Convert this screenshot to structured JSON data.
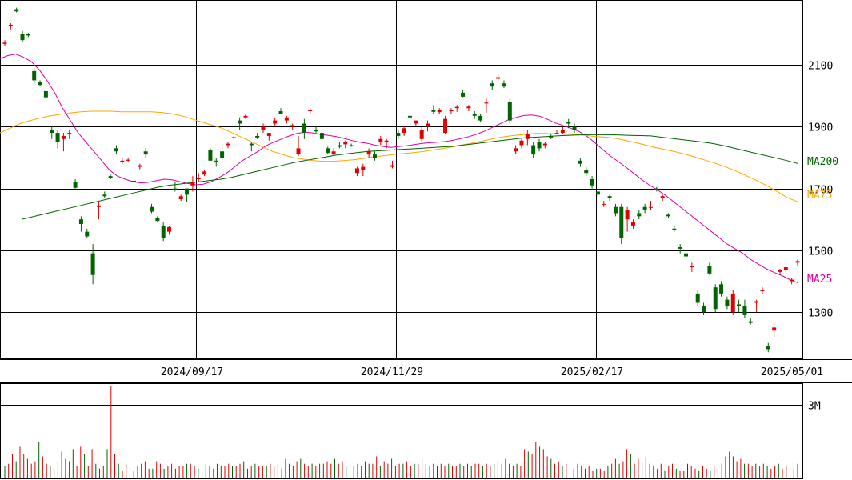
{
  "chart_data": {
    "type": "candlestick",
    "x_labels": [
      "2024/09/17",
      "2024/11/29",
      "2025/02/17",
      "2025/05/01"
    ],
    "y_ticks": [
      1300,
      1500,
      1700,
      1900,
      2100
    ],
    "y_range": [
      1150,
      2310
    ],
    "volume_tick": "3M",
    "volume_max": 3.9,
    "legend": [
      {
        "label": "MA200",
        "color": "#006400",
        "value": 1781
      },
      {
        "label": "MA75",
        "color": "#ffa500",
        "value": 1657
      },
      {
        "label": "MA25",
        "color": "#e000a0",
        "value": 1395
      }
    ],
    "candles": [
      [
        2168,
        2180,
        2160,
        2172
      ],
      [
        2225,
        2235,
        2215,
        2230
      ],
      [
        2280,
        2285,
        2270,
        2273
      ],
      [
        2200,
        2210,
        2175,
        2180
      ],
      [
        2199,
        2203,
        2190,
        2195
      ],
      [
        2080,
        2090,
        2040,
        2050
      ],
      [
        2045,
        2050,
        2030,
        2035
      ],
      [
        2015,
        2020,
        1990,
        1995
      ],
      [
        1890,
        1900,
        1860,
        1880
      ],
      [
        1880,
        1890,
        1830,
        1850
      ],
      [
        1860,
        1880,
        1820,
        1870
      ],
      [
        1880,
        1890,
        1860,
        1880
      ],
      [
        1720,
        1730,
        1700,
        1702
      ],
      [
        1600,
        1610,
        1560,
        1585
      ],
      [
        1560,
        1570,
        1540,
        1545
      ],
      [
        1490,
        1520,
        1390,
        1420
      ],
      [
        1640,
        1660,
        1600,
        1645
      ],
      [
        1680,
        1690,
        1670,
        1675
      ],
      [
        1740,
        1745,
        1730,
        1735
      ],
      [
        1830,
        1840,
        1810,
        1820
      ],
      [
        1785,
        1800,
        1780,
        1790
      ],
      [
        1790,
        1800,
        1785,
        1793
      ],
      [
        1725,
        1730,
        1715,
        1720
      ],
      [
        1770,
        1780,
        1762,
        1775
      ],
      [
        1820,
        1830,
        1800,
        1810
      ],
      [
        1640,
        1650,
        1620,
        1625
      ],
      [
        1605,
        1610,
        1590,
        1595
      ],
      [
        1580,
        1590,
        1530,
        1540
      ],
      [
        1560,
        1580,
        1550,
        1575
      ],
      [
        1700,
        1720,
        1690,
        1695
      ],
      [
        1665,
        1680,
        1660,
        1675
      ],
      [
        1700,
        1700,
        1655,
        1680
      ],
      [
        1710,
        1740,
        1690,
        1720
      ],
      [
        1730,
        1750,
        1720,
        1735
      ],
      [
        1745,
        1760,
        1740,
        1755
      ],
      [
        1825,
        1830,
        1790,
        1790
      ],
      [
        1790,
        1800,
        1770,
        1787
      ],
      [
        1820,
        1840,
        1790,
        1800
      ],
      [
        1840,
        1850,
        1830,
        1845
      ],
      [
        1865,
        1870,
        1860,
        1866
      ],
      [
        1920,
        1930,
        1890,
        1910
      ],
      [
        1930,
        1940,
        1925,
        1935
      ],
      [
        1845,
        1850,
        1820,
        1840
      ],
      [
        1870,
        1880,
        1860,
        1865
      ],
      [
        1890,
        1910,
        1880,
        1900
      ],
      [
        1870,
        1880,
        1855,
        1880
      ],
      [
        1910,
        1930,
        1900,
        1920
      ],
      [
        1950,
        1960,
        1940,
        1942
      ],
      [
        1920,
        1935,
        1910,
        1930
      ],
      [
        1900,
        1910,
        1890,
        1905
      ],
      [
        1810,
        1870,
        1805,
        1830
      ],
      [
        1910,
        1925,
        1860,
        1880
      ],
      [
        1950,
        1960,
        1940,
        1955
      ],
      [
        1890,
        1900,
        1880,
        1885
      ],
      [
        1880,
        1890,
        1855,
        1860
      ],
      [
        1830,
        1835,
        1810,
        1815
      ],
      [
        1810,
        1830,
        1805,
        1820
      ],
      [
        1840,
        1850,
        1830,
        1835
      ],
      [
        1843,
        1855,
        1830,
        1852
      ],
      [
        1840,
        1845,
        1835,
        1838
      ],
      [
        1750,
        1770,
        1740,
        1765
      ],
      [
        1760,
        1780,
        1740,
        1770
      ],
      [
        1810,
        1830,
        1800,
        1820
      ],
      [
        1810,
        1820,
        1790,
        1800
      ],
      [
        1850,
        1870,
        1840,
        1860
      ],
      [
        1850,
        1860,
        1830,
        1855
      ],
      [
        1770,
        1790,
        1765,
        1775
      ],
      [
        1880,
        1890,
        1860,
        1870
      ],
      [
        1880,
        1900,
        1870,
        1895
      ],
      [
        1935,
        1945,
        1925,
        1930
      ],
      [
        1910,
        1920,
        1900,
        1920
      ],
      [
        1860,
        1900,
        1850,
        1890
      ],
      [
        1900,
        1920,
        1885,
        1910
      ],
      [
        1955,
        1970,
        1940,
        1948
      ],
      [
        1947,
        1960,
        1940,
        1955
      ],
      [
        1880,
        1935,
        1875,
        1925
      ],
      [
        1950,
        1960,
        1940,
        1955
      ],
      [
        1960,
        1970,
        1948,
        1964
      ],
      [
        2010,
        2020,
        1995,
        1997
      ],
      [
        1960,
        1970,
        1950,
        1965
      ],
      [
        1940,
        1950,
        1925,
        1935
      ],
      [
        1935,
        1940,
        1915,
        1920
      ],
      [
        1975,
        1990,
        1945,
        1978
      ],
      [
        2040,
        2050,
        2020,
        2030
      ],
      [
        2055,
        2070,
        2050,
        2060
      ],
      [
        2040,
        2050,
        2025,
        2030
      ],
      [
        1980,
        1990,
        1910,
        1920
      ],
      [
        1820,
        1840,
        1810,
        1830
      ],
      [
        1840,
        1860,
        1830,
        1855
      ],
      [
        1860,
        1890,
        1840,
        1875
      ],
      [
        1840,
        1850,
        1800,
        1810
      ],
      [
        1850,
        1860,
        1820,
        1830
      ],
      [
        1840,
        1850,
        1830,
        1845
      ],
      [
        1870,
        1875,
        1860,
        1865
      ],
      [
        1880,
        1890,
        1875,
        1880
      ],
      [
        1880,
        1900,
        1875,
        1890
      ],
      [
        1915,
        1925,
        1895,
        1910
      ],
      [
        1900,
        1910,
        1880,
        1890
      ],
      [
        1790,
        1800,
        1770,
        1780
      ],
      [
        1760,
        1770,
        1740,
        1750
      ],
      [
        1730,
        1740,
        1700,
        1710
      ],
      [
        1690,
        1700,
        1670,
        1680
      ],
      [
        1650,
        1660,
        1640,
        1650
      ],
      [
        1675,
        1680,
        1660,
        1670
      ],
      [
        1640,
        1650,
        1610,
        1620
      ],
      [
        1640,
        1650,
        1520,
        1540
      ],
      [
        1600,
        1640,
        1560,
        1630
      ],
      [
        1580,
        1600,
        1570,
        1590
      ],
      [
        1620,
        1630,
        1600,
        1610
      ],
      [
        1640,
        1650,
        1620,
        1630
      ],
      [
        1640,
        1660,
        1630,
        1640
      ],
      [
        1700,
        1705,
        1690,
        1695
      ],
      [
        1670,
        1680,
        1660,
        1675
      ],
      [
        1615,
        1620,
        1605,
        1610
      ],
      [
        1570,
        1580,
        1560,
        1565
      ],
      [
        1510,
        1520,
        1490,
        1505
      ],
      [
        1490,
        1500,
        1470,
        1480
      ],
      [
        1445,
        1460,
        1430,
        1450
      ],
      [
        1360,
        1370,
        1320,
        1330
      ],
      [
        1320,
        1330,
        1290,
        1300
      ],
      [
        1450,
        1460,
        1420,
        1425
      ],
      [
        1380,
        1390,
        1300,
        1310
      ],
      [
        1390,
        1400,
        1350,
        1360
      ],
      [
        1340,
        1350,
        1310,
        1320
      ],
      [
        1300,
        1370,
        1290,
        1360
      ],
      [
        1325,
        1340,
        1300,
        1320
      ],
      [
        1320,
        1340,
        1280,
        1290
      ],
      [
        1270,
        1280,
        1260,
        1265
      ],
      [
        1330,
        1340,
        1300,
        1335
      ],
      [
        1370,
        1380,
        1360,
        1370
      ],
      [
        1190,
        1200,
        1170,
        1180
      ],
      [
        1240,
        1260,
        1220,
        1250
      ],
      [
        1430,
        1440,
        1420,
        1435
      ],
      [
        1435,
        1450,
        1430,
        1445
      ],
      [
        1400,
        1410,
        1390,
        1405
      ],
      [
        1460,
        1470,
        1450,
        1465
      ]
    ],
    "ma25": [
      2120,
      2130,
      2135,
      2125,
      2110,
      2085,
      2050,
      2010,
      1960,
      1920,
      1880,
      1850,
      1820,
      1790,
      1760,
      1740,
      1730,
      1722,
      1718,
      1720,
      1725,
      1730,
      1728,
      1722,
      1716,
      1712,
      1714,
      1722,
      1735,
      1750,
      1770,
      1790,
      1805,
      1820,
      1838,
      1850,
      1860,
      1870,
      1878,
      1882,
      1880,
      1875,
      1872,
      1868,
      1862,
      1855,
      1850,
      1846,
      1840,
      1836,
      1833,
      1836,
      1838,
      1842,
      1846,
      1848,
      1850,
      1852,
      1856,
      1862,
      1868,
      1876,
      1886,
      1898,
      1910,
      1922,
      1930,
      1936,
      1938,
      1934,
      1924,
      1912,
      1904,
      1895,
      1885,
      1870,
      1850,
      1828,
      1806,
      1788,
      1770,
      1750,
      1730,
      1712,
      1696,
      1680,
      1660,
      1640,
      1620,
      1600,
      1580,
      1560,
      1540,
      1520,
      1505,
      1490,
      1470,
      1455,
      1440,
      1428,
      1418,
      1405,
      1395
    ],
    "ma75": [
      1880,
      1895,
      1910,
      1920,
      1928,
      1935,
      1940,
      1945,
      1948,
      1950,
      1950,
      1950,
      1948,
      1948,
      1948,
      1948,
      1946,
      1942,
      1935,
      1925,
      1915,
      1905,
      1895,
      1880,
      1865,
      1850,
      1835,
      1820,
      1810,
      1800,
      1795,
      1790,
      1788,
      1788,
      1790,
      1793,
      1797,
      1802,
      1806,
      1810,
      1813,
      1816,
      1820,
      1825,
      1830,
      1836,
      1842,
      1848,
      1855,
      1862,
      1868,
      1872,
      1875,
      1878,
      1878,
      1877,
      1876,
      1875,
      1872,
      1868,
      1866,
      1862,
      1855,
      1848,
      1840,
      1832,
      1825,
      1818,
      1810,
      1800,
      1790,
      1780,
      1768,
      1755,
      1740,
      1725,
      1708,
      1690,
      1670,
      1657
    ],
    "ma200": [
      1600,
      1608,
      1616,
      1624,
      1632,
      1640,
      1648,
      1656,
      1664,
      1672,
      1680,
      1688,
      1696,
      1704,
      1710,
      1714,
      1718,
      1722,
      1726,
      1730,
      1736,
      1744,
      1752,
      1760,
      1768,
      1776,
      1784,
      1790,
      1796,
      1802,
      1808,
      1812,
      1816,
      1820,
      1822,
      1824,
      1826,
      1828,
      1830,
      1832,
      1834,
      1836,
      1840,
      1844,
      1848,
      1852,
      1856,
      1860,
      1864,
      1866,
      1868,
      1870,
      1872,
      1873,
      1874,
      1874,
      1874,
      1873,
      1872,
      1871,
      1870,
      1866,
      1862,
      1858,
      1854,
      1850,
      1845,
      1838,
      1830,
      1822,
      1814,
      1806,
      1798,
      1790,
      1781
    ],
    "volumes": [
      0.5,
      0.6,
      1.0,
      0.7,
      1.3,
      1.0,
      0.8,
      0.6,
      0.7,
      1.5,
      0.9,
      0.6,
      0.5,
      0.4,
      0.7,
      1.1,
      0.8,
      0.7,
      1.2,
      0.5,
      1.3,
      1.0,
      0.5,
      1.2,
      0.6,
      0.4,
      0.5,
      1.2,
      3.8,
      1.0,
      0.6,
      0.3,
      0.6,
      0.4,
      0.3,
      0.5,
      0.6,
      0.7,
      0.4,
      0.4,
      0.7,
      0.6,
      0.4,
      0.5,
      0.6,
      0.4,
      0.5,
      0.5,
      0.6,
      0.6,
      0.5,
      0.4,
      0.3,
      0.6,
      0.5,
      0.4,
      0.6,
      0.5,
      0.5,
      0.6,
      0.5,
      0.5,
      0.6,
      0.7,
      0.4,
      0.5,
      0.6,
      0.5,
      0.5,
      0.5,
      0.6,
      0.5,
      0.6,
      0.4,
      0.8,
      0.6,
      0.5,
      0.7,
      0.8,
      0.6,
      0.5,
      0.6,
      0.5,
      0.6,
      0.6,
      0.7,
      0.6,
      0.8,
      0.6,
      0.7,
      0.5,
      0.6,
      0.5,
      0.6,
      0.5,
      0.7,
      0.6,
      0.6,
      0.9,
      0.5,
      0.7,
      0.6,
      0.8,
      0.5,
      0.6,
      0.6,
      0.7,
      0.5,
      0.6,
      0.6,
      0.8,
      0.6,
      0.5,
      0.6,
      0.5,
      0.6,
      0.5,
      0.6,
      0.5,
      0.5,
      0.6,
      0.5,
      0.6,
      0.5,
      0.6,
      0.6,
      0.5,
      0.6,
      0.5,
      0.6,
      0.7,
      0.6,
      0.8,
      0.6,
      0.5,
      0.6,
      0.5,
      1.2,
      1.1,
      1.0,
      1.5,
      1.3,
      1.2,
      0.9,
      0.8,
      0.6,
      0.7,
      0.5,
      0.6,
      0.5,
      0.4,
      0.6,
      0.5,
      0.4,
      0.5,
      0.3,
      0.4,
      0.4,
      0.3,
      0.5,
      0.6,
      0.8,
      0.6,
      0.7,
      1.2,
      1.0,
      0.6,
      0.8,
      0.7,
      0.9,
      0.6,
      0.5,
      0.4,
      0.6,
      0.3,
      0.5,
      0.6,
      0.4,
      0.3,
      0.3,
      0.6,
      0.5,
      0.4,
      0.3,
      0.5,
      0.4,
      0.3,
      0.5,
      0.4,
      0.6,
      0.9,
      1.1,
      0.9,
      0.7,
      0.8,
      0.6,
      0.6,
      0.5,
      0.6,
      0.5,
      0.6,
      0.5,
      0.4,
      0.5,
      0.6,
      0.4,
      0.5,
      0.3,
      0.4,
      0.6
    ]
  }
}
